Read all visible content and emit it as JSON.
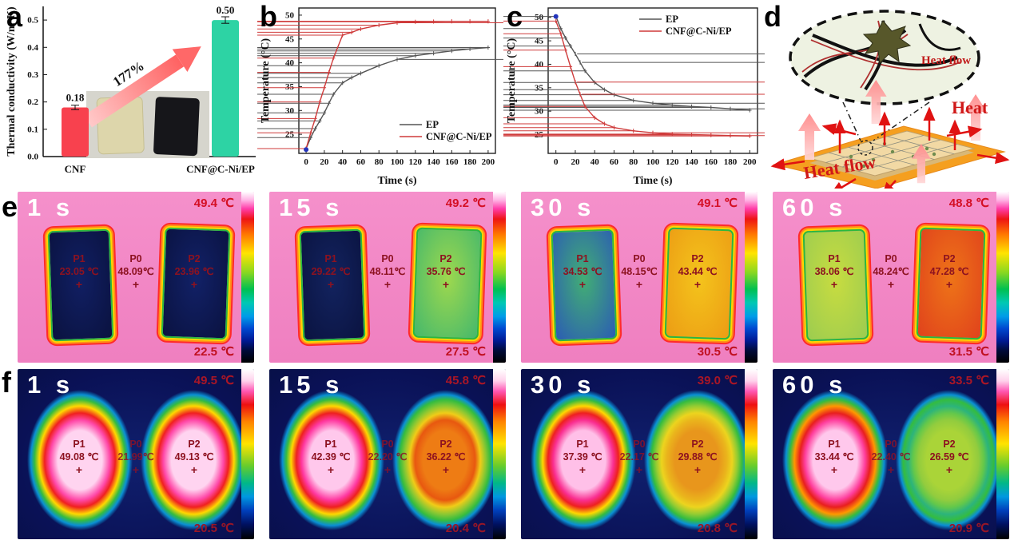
{
  "panels": {
    "a": "a",
    "b": "b",
    "c": "c",
    "d": "d",
    "e": "e",
    "f": "f"
  },
  "chart_data": [
    {
      "id": "a",
      "type": "bar",
      "ylabel": "Thermal conductivity (W/m·K)",
      "categories": [
        "CNF",
        "CNF@C-Ni/EP"
      ],
      "values": [
        0.18,
        0.5
      ],
      "value_labels": [
        "0.18",
        "0.50"
      ],
      "bar_colors": [
        "#f8414e",
        "#2dd3a4"
      ],
      "label_colors": [
        "#e8202c",
        "#18b890"
      ],
      "errors": [
        0.008,
        0.012
      ],
      "ylim": [
        0,
        0.55
      ],
      "yticks": [
        "0.0",
        "0.1",
        "0.2",
        "0.3",
        "0.4",
        "0.5"
      ],
      "annotation": {
        "text": "177%",
        "color": "#e04848"
      },
      "inset_note": "photo of translucent beige CNF sample and black CNF@C-Ni/EP sample"
    },
    {
      "id": "b",
      "type": "line",
      "xlabel": "Time (s)",
      "ylabel": "Temperature (°C)",
      "xlim": [
        -8,
        208
      ],
      "ylim": [
        21,
        51.5
      ],
      "xticks": [
        0,
        20,
        40,
        60,
        80,
        100,
        120,
        140,
        160,
        180,
        200
      ],
      "yticks": [
        25,
        30,
        35,
        40,
        45,
        50
      ],
      "legend_position": "bottom-right",
      "x": [
        0,
        5,
        10,
        15,
        20,
        25,
        30,
        40,
        50,
        60,
        80,
        100,
        120,
        140,
        160,
        180,
        200
      ],
      "series": [
        {
          "name": "EP",
          "color": "#555555",
          "values": [
            22,
            24.3,
            26.2,
            27.8,
            29.5,
            31.5,
            33.4,
            35.8,
            36.9,
            37.8,
            39.4,
            40.7,
            41.5,
            42.0,
            42.5,
            42.9,
            43.2
          ]
        },
        {
          "name": "CNF@C-Ni/EP",
          "color": "#cf3a3a",
          "values": [
            22,
            25.3,
            28.3,
            31.8,
            34.8,
            38.0,
            41.0,
            45.8,
            46.4,
            47.1,
            47.9,
            48.4,
            48.6,
            48.65,
            48.7,
            48.7,
            48.7
          ]
        }
      ],
      "start_dot": [
        0,
        21.8
      ]
    },
    {
      "id": "c",
      "type": "line",
      "xlabel": "Time (s)",
      "ylabel": "Temperature (°C)",
      "xlim": [
        -8,
        208
      ],
      "ylim": [
        21,
        52
      ],
      "xticks": [
        0,
        20,
        40,
        60,
        80,
        100,
        120,
        140,
        160,
        180,
        200
      ],
      "yticks": [
        25,
        30,
        35,
        40,
        45,
        50
      ],
      "legend_position": "top-right",
      "x": [
        0,
        5,
        10,
        15,
        20,
        25,
        30,
        40,
        50,
        60,
        80,
        100,
        120,
        140,
        160,
        180,
        200
      ],
      "series": [
        {
          "name": "EP",
          "color": "#555555",
          "values": [
            50.2,
            47.6,
            45.6,
            43.9,
            42.2,
            40.4,
            38.6,
            36.1,
            34.6,
            33.5,
            32.3,
            31.7,
            31.3,
            31.0,
            30.8,
            30.5,
            30.2
          ]
        },
        {
          "name": "CNF@C-Ni/EP",
          "color": "#cf3a3a",
          "values": [
            49.2,
            46.5,
            43.0,
            39.5,
            36.2,
            33.6,
            31.0,
            28.6,
            27.3,
            26.5,
            25.8,
            25.4,
            25.1,
            25.0,
            24.9,
            24.8,
            24.7
          ]
        }
      ],
      "start_dot": [
        0,
        50.2
      ]
    }
  ],
  "panel_d": {
    "ellipse_label": "Heat flow",
    "heat_label": "Heat",
    "bottom_label": "Heat flow"
  },
  "thermal_rows": [
    {
      "row": "e",
      "images": [
        {
          "time": "1 s",
          "max_temp": "49.4 ℃",
          "min_temp": "22.5 ℃",
          "points": {
            "p1": {
              "label": "P1",
              "temp": "23.05 ℃",
              "mark": "+"
            },
            "p0": {
              "label": "P0",
              "temp": "48.09℃",
              "mark": "+"
            },
            "p2": {
              "label": "P2",
              "temp": "23.96 ℃",
              "mark": "+"
            }
          },
          "left_colors": [
            "#111f63",
            "#0a123f"
          ],
          "right_colors": [
            "#122167",
            "#0a1240"
          ]
        },
        {
          "time": "15 s",
          "max_temp": "49.2 ℃",
          "min_temp": "27.5 ℃",
          "points": {
            "p1": {
              "label": "P1",
              "temp": "29.22 ℃",
              "mark": "+"
            },
            "p0": {
              "label": "P0",
              "temp": "48.11℃",
              "mark": "+"
            },
            "p2": {
              "label": "P2",
              "temp": "35.76 ℃",
              "mark": "+"
            }
          },
          "left_colors": [
            "#13235f",
            "#0a1340"
          ],
          "right_colors": [
            "#9ed84e",
            "#44b86c"
          ]
        },
        {
          "time": "30 s",
          "max_temp": "49.1 ℃",
          "min_temp": "30.5 ℃",
          "points": {
            "p1": {
              "label": "P1",
              "temp": "34.53 ℃",
              "mark": "+"
            },
            "p0": {
              "label": "P0",
              "temp": "48.15℃",
              "mark": "+"
            },
            "p2": {
              "label": "P2",
              "temp": "43.44 ℃",
              "mark": "+"
            }
          },
          "left_colors": [
            "#42ae74",
            "#2b5cb4"
          ],
          "right_colors": [
            "#f4c41c",
            "#ec9c14"
          ]
        },
        {
          "time": "60 s",
          "max_temp": "48.8 ℃",
          "min_temp": "31.5 ℃",
          "points": {
            "p1": {
              "label": "P1",
              "temp": "38.06 ℃",
              "mark": "+"
            },
            "p0": {
              "label": "P0",
              "temp": "48.24℃",
              "mark": "+"
            },
            "p2": {
              "label": "P2",
              "temp": "47.28 ℃",
              "mark": "+"
            }
          },
          "left_colors": [
            "#c8dc40",
            "#9ccc50"
          ],
          "right_colors": [
            "#ee7418",
            "#e0421c"
          ]
        }
      ]
    },
    {
      "row": "f",
      "images": [
        {
          "time": "1 s",
          "max_temp": "49.5 ℃",
          "min_temp": "20.5 ℃",
          "points": {
            "p1": {
              "label": "P1",
              "temp": "49.08 ℃",
              "mark": "+"
            },
            "p0": {
              "label": "P0",
              "temp": "21.99℃",
              "mark": "+"
            },
            "p2": {
              "label": "P2",
              "temp": "49.13 ℃",
              "mark": "+"
            }
          },
          "left_colors": [
            "#ffd4f0",
            "#ff48a8",
            "#f02020",
            "#ffd800"
          ],
          "right_colors": [
            "#ffd4f0",
            "#ff48a8",
            "#f02020",
            "#ffd800"
          ]
        },
        {
          "time": "15 s",
          "max_temp": "45.8 ℃",
          "min_temp": "20.4 ℃",
          "points": {
            "p1": {
              "label": "P1",
              "temp": "42.39 ℃",
              "mark": "+"
            },
            "p0": {
              "label": "P0",
              "temp": "22.20 ℃",
              "mark": "+"
            },
            "p2": {
              "label": "P2",
              "temp": "36.22 ℃",
              "mark": "+"
            }
          },
          "left_colors": [
            "#ffc8ec",
            "#ff38a0",
            "#ee2020",
            "#ffd800"
          ],
          "right_colors": [
            "#ee7c14",
            "#e85810",
            "#f0cc18",
            "#8cc832"
          ]
        },
        {
          "time": "30 s",
          "max_temp": "39.0 ℃",
          "min_temp": "20.8 ℃",
          "points": {
            "p1": {
              "label": "P1",
              "temp": "37.39 ℃",
              "mark": "+"
            },
            "p0": {
              "label": "P0",
              "temp": "22.17 ℃",
              "mark": "+"
            },
            "p2": {
              "label": "P2",
              "temp": "29.88 ℃",
              "mark": "+"
            }
          },
          "left_colors": [
            "#ffc0e8",
            "#fa2f92",
            "#ee2020",
            "#ffd800"
          ],
          "right_colors": [
            "#e8961c",
            "#eab41c",
            "#ecd41e",
            "#94cc32"
          ]
        },
        {
          "time": "60 s",
          "max_temp": "33.5 ℃",
          "min_temp": "20.9 ℃",
          "points": {
            "p1": {
              "label": "P1",
              "temp": "33.44 ℃",
              "mark": "+"
            },
            "p0": {
              "label": "P0",
              "temp": "22.40 ℃",
              "mark": "+"
            },
            "p2": {
              "label": "P2",
              "temp": "26.59 ℃",
              "mark": "+"
            }
          },
          "left_colors": [
            "#ffc8ec",
            "#ff3f9e",
            "#e81f1f",
            "#ff9800"
          ],
          "right_colors": [
            "#aad438",
            "#92cc3e",
            "#64c84a",
            "#2cb47c"
          ]
        }
      ]
    }
  ]
}
